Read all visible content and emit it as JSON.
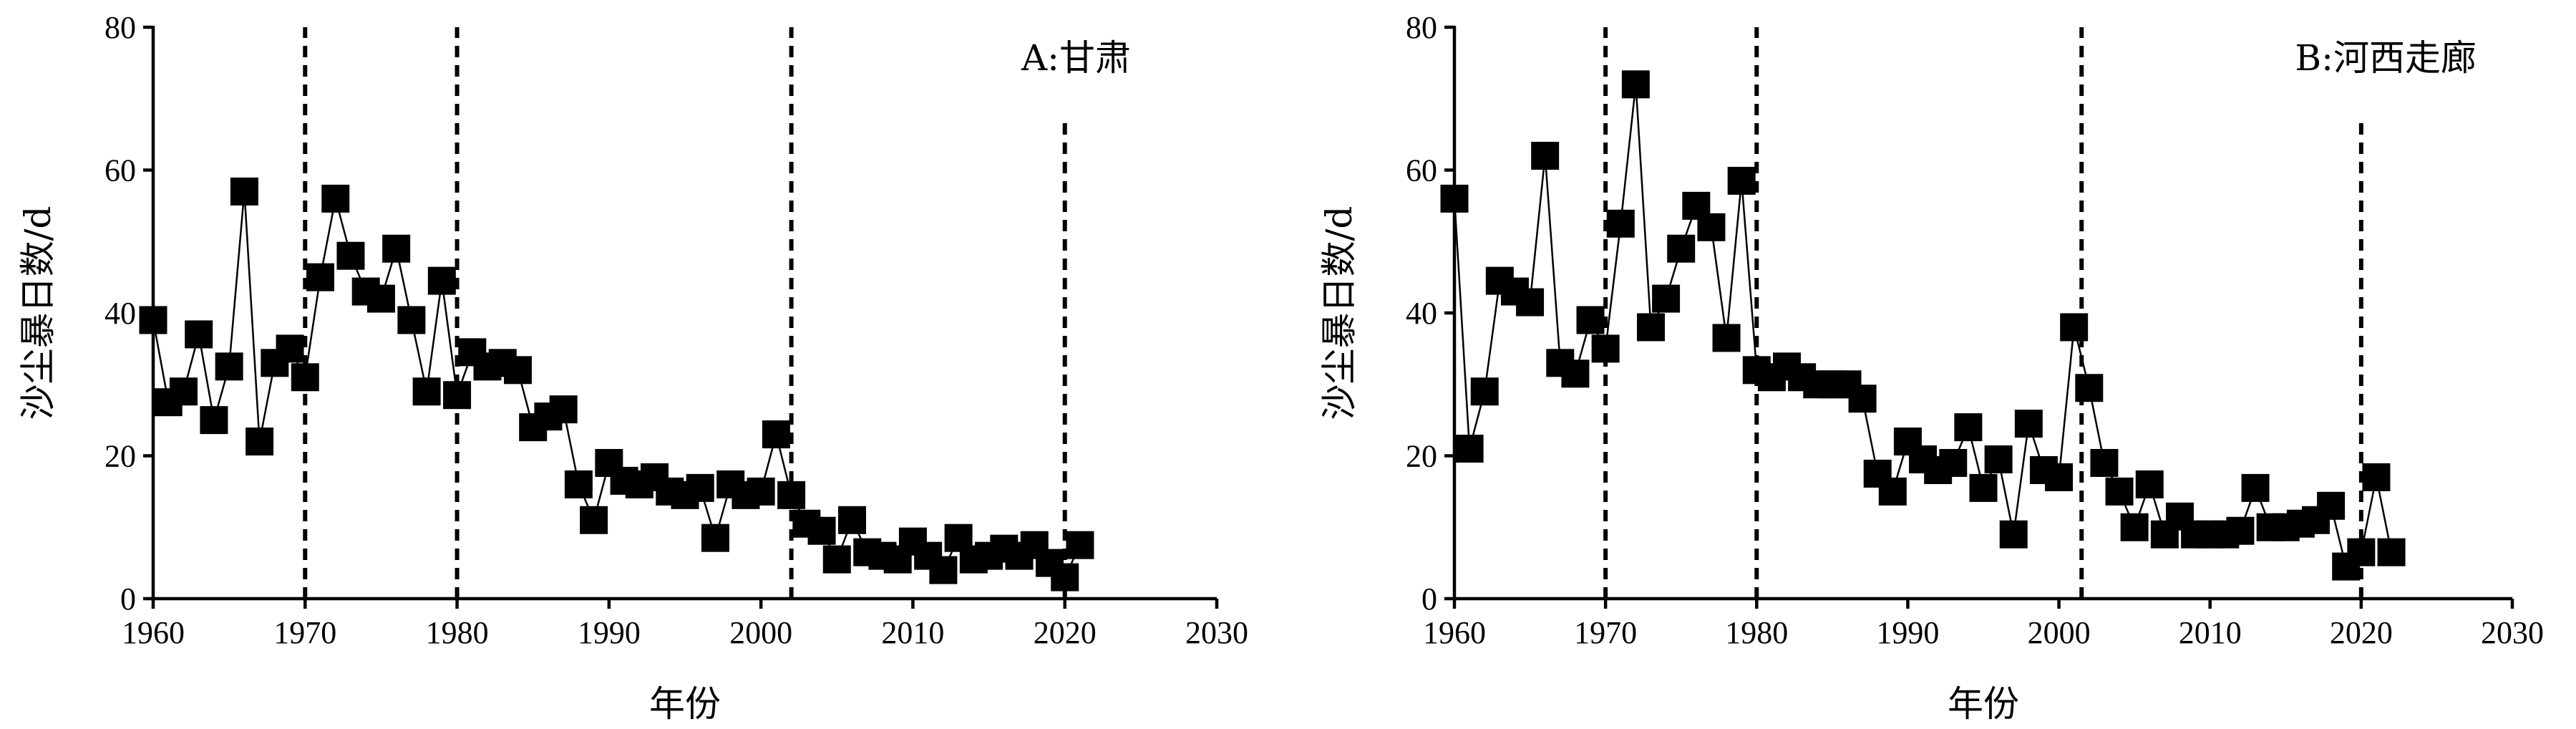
{
  "chart_data": [
    {
      "type": "line",
      "title": "A:甘肃",
      "xlabel": "年份",
      "ylabel": "沙尘暴日数/d",
      "xlim": [
        1960,
        2030
      ],
      "ylim": [
        0,
        80
      ],
      "x_ticks": [
        1960,
        1970,
        1980,
        1990,
        2000,
        2010,
        2020,
        2030
      ],
      "y_ticks": [
        0,
        20,
        40,
        60,
        80
      ],
      "reference_lines_x": [
        1970,
        1980,
        2002,
        2020
      ],
      "marker": "square",
      "series": [
        {
          "x": [
            1960,
            1961,
            1962,
            1963,
            1964,
            1965,
            1966,
            1967,
            1968,
            1969,
            1970,
            1971,
            1972,
            1973,
            1974,
            1975,
            1976,
            1977,
            1978,
            1979,
            1980,
            1981,
            1982,
            1983,
            1984,
            1985,
            1986,
            1987,
            1988,
            1989,
            1990,
            1991,
            1992,
            1993,
            1994,
            1995,
            1996,
            1997,
            1998,
            1999,
            2000,
            2001,
            2002,
            2003,
            2004,
            2005,
            2006,
            2007,
            2008,
            2009,
            2010,
            2011,
            2012,
            2013,
            2014,
            2015,
            2016,
            2017,
            2018,
            2019,
            2020,
            2021
          ],
          "y": [
            39,
            27.5,
            29,
            37,
            25,
            32.5,
            57,
            22,
            33,
            35,
            31,
            45,
            56,
            48,
            43,
            42,
            49,
            39,
            29,
            44.5,
            28.5,
            34.5,
            32.5,
            33,
            32,
            24,
            25.5,
            26.5,
            16,
            11,
            19,
            16.5,
            16,
            17,
            15,
            14.5,
            15.5,
            8.5,
            16,
            14.5,
            15,
            23,
            14.5,
            10.5,
            9.5,
            5.5,
            11,
            6.5,
            6,
            5.5,
            8,
            6,
            4,
            8.5,
            5.5,
            6,
            7,
            6,
            7.5,
            5,
            3,
            7.5
          ]
        }
      ]
    },
    {
      "type": "line",
      "title": "B:河西走廊",
      "xlabel": "年份",
      "ylabel": "沙尘暴日数/d",
      "xlim": [
        1960,
        2030
      ],
      "ylim": [
        0,
        80
      ],
      "x_ticks": [
        1960,
        1970,
        1980,
        1990,
        2000,
        2010,
        2020,
        2030
      ],
      "y_ticks": [
        0,
        20,
        40,
        60,
        80
      ],
      "reference_lines_x": [
        1970,
        1980,
        2001.5,
        2020
      ],
      "marker": "square",
      "series": [
        {
          "x": [
            1960,
            1961,
            1962,
            1963,
            1964,
            1965,
            1966,
            1967,
            1968,
            1969,
            1970,
            1971,
            1972,
            1973,
            1974,
            1975,
            1976,
            1977,
            1978,
            1979,
            1980,
            1981,
            1982,
            1983,
            1984,
            1985,
            1986,
            1987,
            1988,
            1989,
            1990,
            1991,
            1992,
            1993,
            1994,
            1995,
            1996,
            1997,
            1998,
            1999,
            2000,
            2001,
            2002,
            2003,
            2004,
            2005,
            2006,
            2007,
            2008,
            2009,
            2010,
            2011,
            2012,
            2013,
            2014,
            2015,
            2016,
            2017,
            2018,
            2019,
            2020,
            2021,
            2022
          ],
          "y": [
            56,
            21,
            29,
            44.5,
            43,
            41.5,
            62,
            33,
            31.5,
            39,
            35,
            52.5,
            72,
            38,
            42,
            49,
            55,
            52,
            36.5,
            58.5,
            32,
            31,
            32.5,
            31,
            30,
            30,
            30,
            28,
            17.5,
            15,
            22,
            19.5,
            18,
            19,
            24,
            15.5,
            19.5,
            9,
            24.5,
            18,
            17,
            38,
            29.5,
            19,
            15,
            10,
            16,
            9,
            11.5,
            9,
            9,
            9,
            9.5,
            15.5,
            10,
            10,
            10.5,
            11,
            13,
            4.5,
            6.5,
            17,
            6.5
          ]
        }
      ]
    }
  ]
}
